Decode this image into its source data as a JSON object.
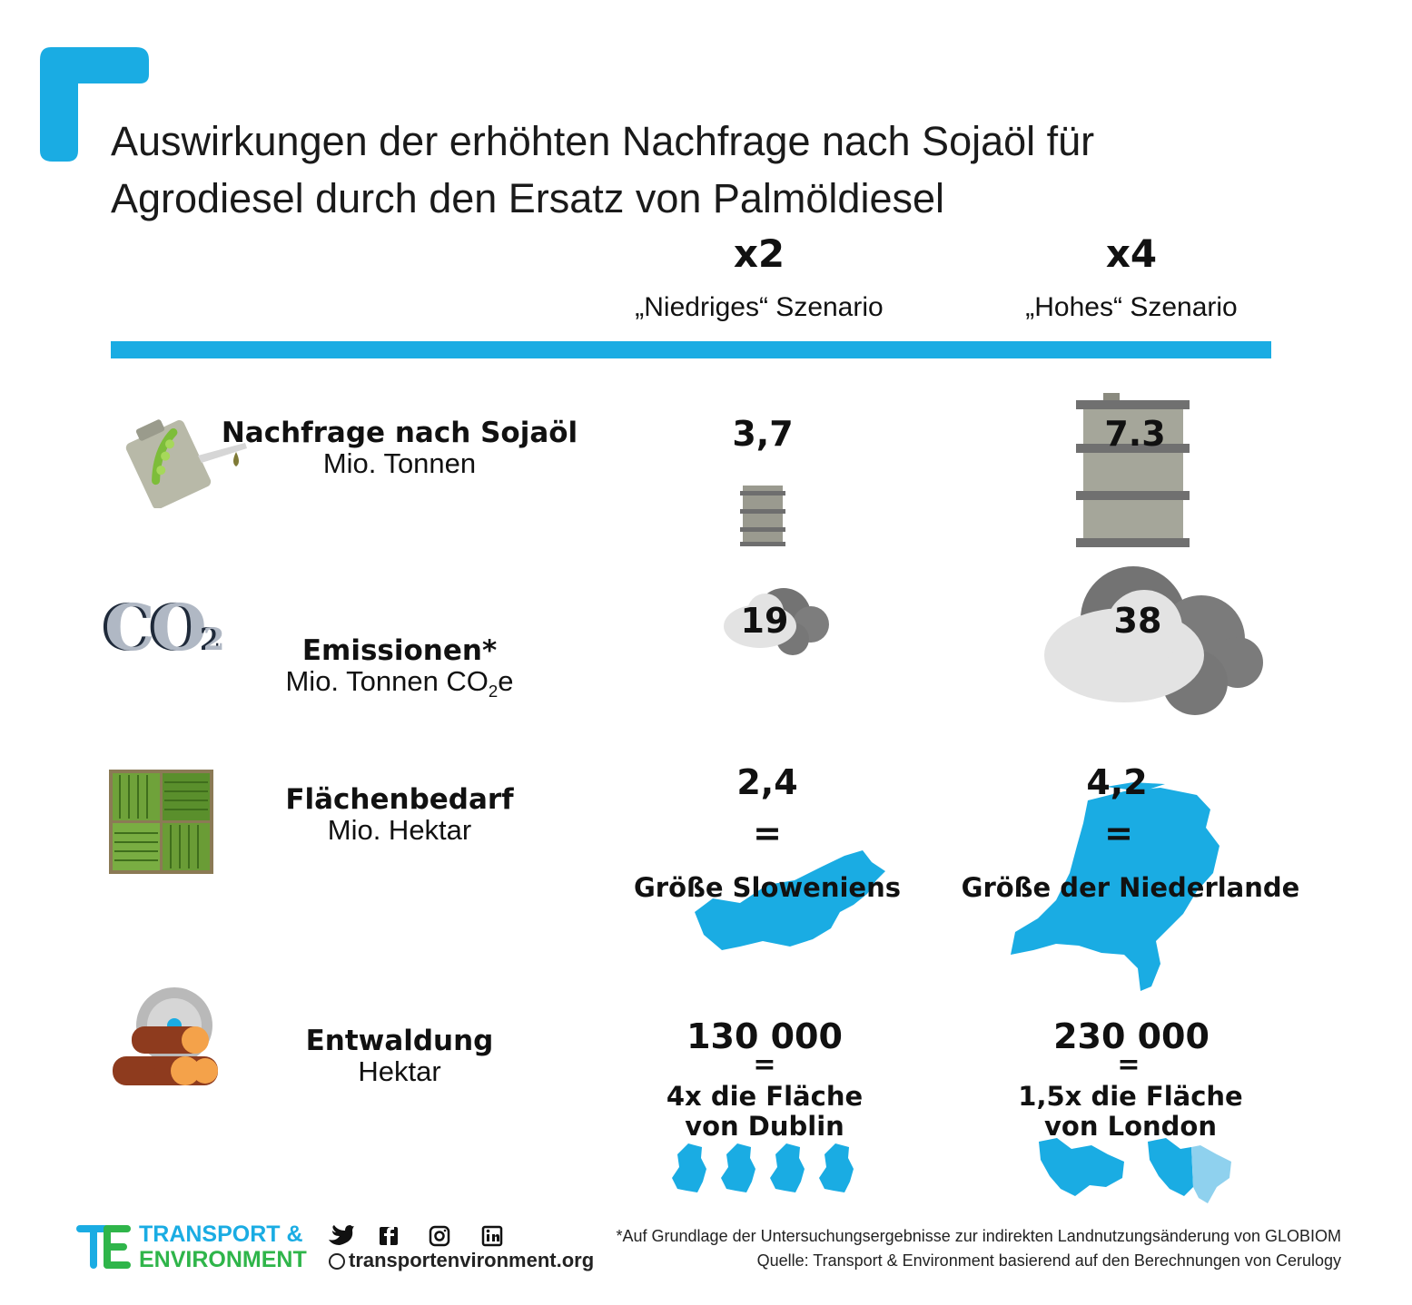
{
  "title": {
    "line1": "Auswirkungen der erhöhten Nachfrage nach Sojaöl für",
    "line2": "Agrodiesel durch den Ersatz von Palmöldiesel"
  },
  "colors": {
    "accent": "#1aace3",
    "grey": "#8a8a8a",
    "map": "#1aace3",
    "map_light": "#8fd1ee"
  },
  "scenarios": [
    {
      "multiplier": "x2",
      "label": "„Niedriges“ Szenario"
    },
    {
      "multiplier": "x4",
      "label": "„Hohes“ Szenario"
    }
  ],
  "rows": {
    "demand": {
      "label": "Nachfrage nach Sojaöl",
      "unit": "Mio. Tonnen",
      "icon": "oil-canister-icon",
      "low": "3,7",
      "high": "7.3"
    },
    "emissions": {
      "label": "Emissionen*",
      "unit_prefix": "Mio. Tonnen CO",
      "unit_sub": "2",
      "unit_suffix": "e",
      "icon_text": "CO",
      "icon_sub": "2",
      "low": "19",
      "high": "38"
    },
    "land": {
      "label": "Flächenbedarf",
      "unit": "Mio. Hektar",
      "icon": "field-icon",
      "low": "2,4",
      "high": "4,2",
      "eq": "=",
      "low_comp": "Größe Sloweniens",
      "high_comp": "Größe der Niederlande"
    },
    "deforestation": {
      "label": "Entwaldung",
      "unit": "Hektar",
      "icon": "logs-saw-icon",
      "low": "130 000",
      "high": "230 000",
      "eq": "=",
      "low_comp1": "4x die Fläche",
      "low_comp2": "von Dublin",
      "high_comp1": "1,5x die Fläche",
      "high_comp2": "von London"
    }
  },
  "footer": {
    "brand1": "TRANSPORT &",
    "brand2": "ENVIRONMENT",
    "website": "transportenvironment.org",
    "note": "*Auf Grundlage der Untersuchungsergebnisse zur indirekten Landnutzungsänderung von GLOBIOM",
    "source": "Quelle: Transport & Environment basierend auf den Berechnungen von Cerulogy",
    "social_icons": [
      "twitter-icon",
      "facebook-icon",
      "instagram-icon",
      "linkedin-icon"
    ]
  }
}
